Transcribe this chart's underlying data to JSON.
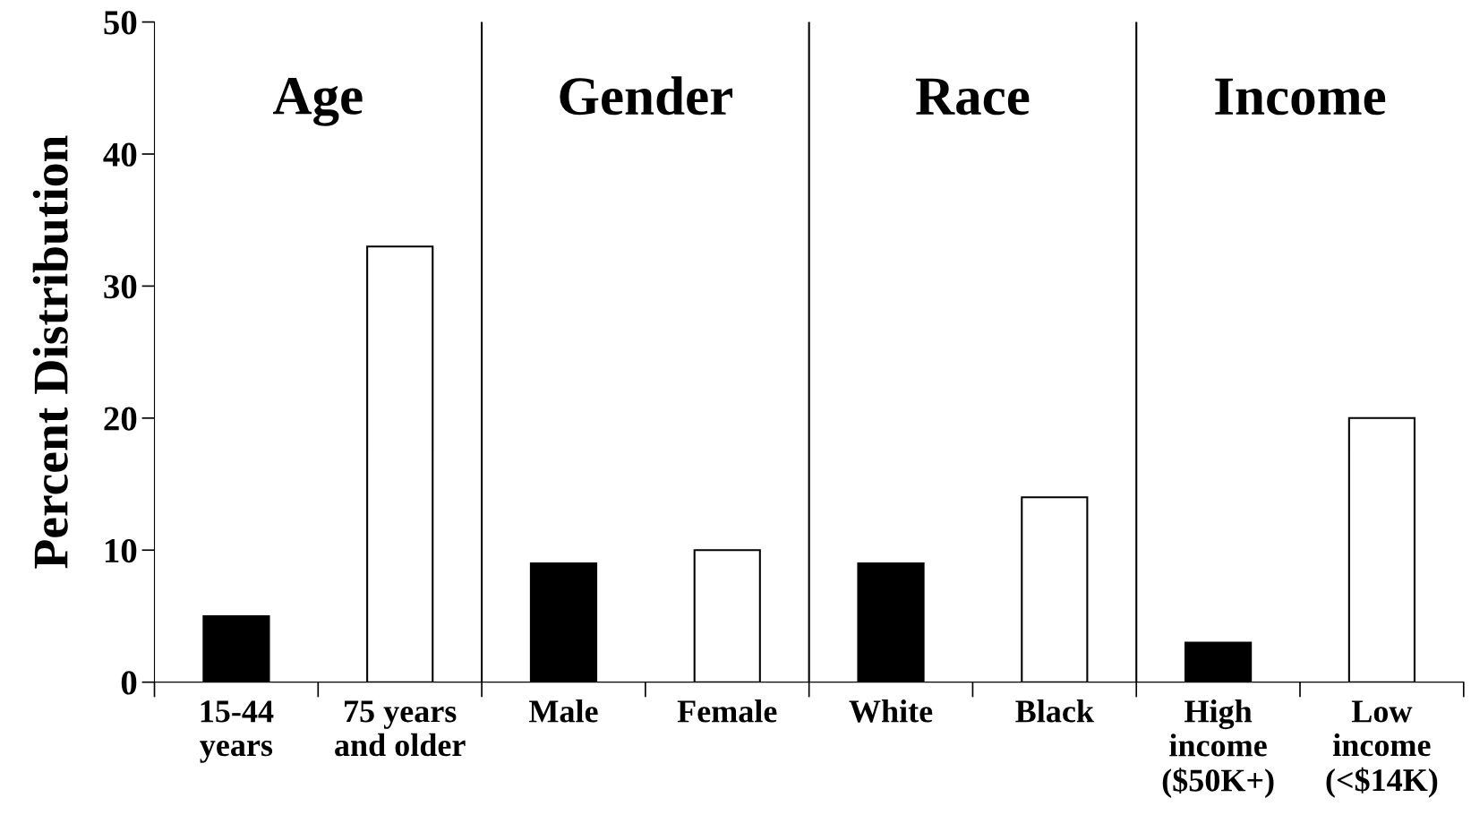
{
  "chart_data": {
    "type": "bar",
    "ylabel": "Percent Distribution",
    "categories": [
      "15-44\nyears",
      "75 years\nand older",
      "Male",
      "Female",
      "White",
      "Black",
      "High\nincome\n($50K+)",
      "Low\nincome\n(<$14K)"
    ],
    "values": [
      5,
      33,
      9,
      10,
      9,
      14,
      3,
      20
    ],
    "colors": [
      "#000000",
      "#ffffff",
      "#000000",
      "#ffffff",
      "#000000",
      "#ffffff",
      "#000000",
      "#ffffff"
    ],
    "ylim": [
      0,
      50
    ],
    "yticks": [
      0,
      10,
      20,
      30,
      40,
      50
    ],
    "grid": false,
    "legend": false,
    "annotations": [
      "Age",
      "Gender",
      "Race",
      "Income"
    ]
  }
}
